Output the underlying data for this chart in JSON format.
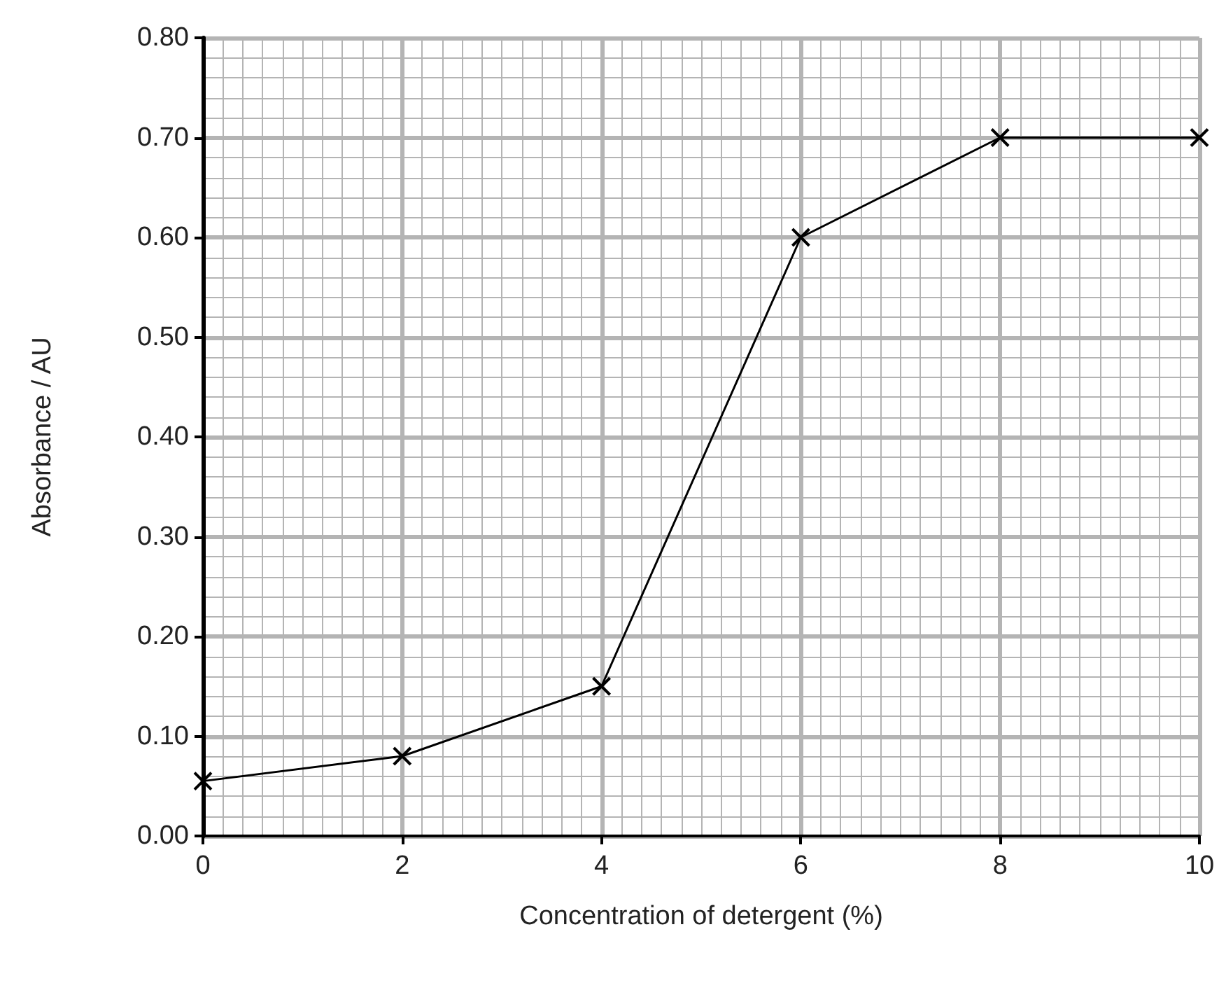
{
  "chart_data": {
    "type": "line",
    "xlabel": "Concentration of detergent (%)",
    "ylabel": "Absorbance / AU",
    "x": [
      0,
      2,
      4,
      6,
      8,
      10
    ],
    "series": [
      {
        "color": "#000000",
        "values": [
          0.055,
          0.08,
          0.15,
          0.6,
          0.7,
          0.7
        ]
      }
    ],
    "xlim": [
      0,
      10
    ],
    "xticks": [
      0,
      2,
      4,
      6,
      8,
      10
    ],
    "ylim": [
      0,
      0.8
    ],
    "yticks": [
      {
        "value": 0,
        "label": "0.00"
      },
      {
        "value": 0.1,
        "label": "0.10"
      },
      {
        "value": 0.2,
        "label": "0.20"
      },
      {
        "value": 0.3,
        "label": "0.30"
      },
      {
        "value": 0.4,
        "label": "0.40"
      },
      {
        "value": 0.5,
        "label": "0.50"
      },
      {
        "value": 0.6,
        "label": "0.60"
      },
      {
        "value": 0.7,
        "label": "0.70"
      },
      {
        "value": 0.8,
        "label": "0.80"
      }
    ],
    "grid": true,
    "marker": "cross",
    "line_style": "solid"
  }
}
